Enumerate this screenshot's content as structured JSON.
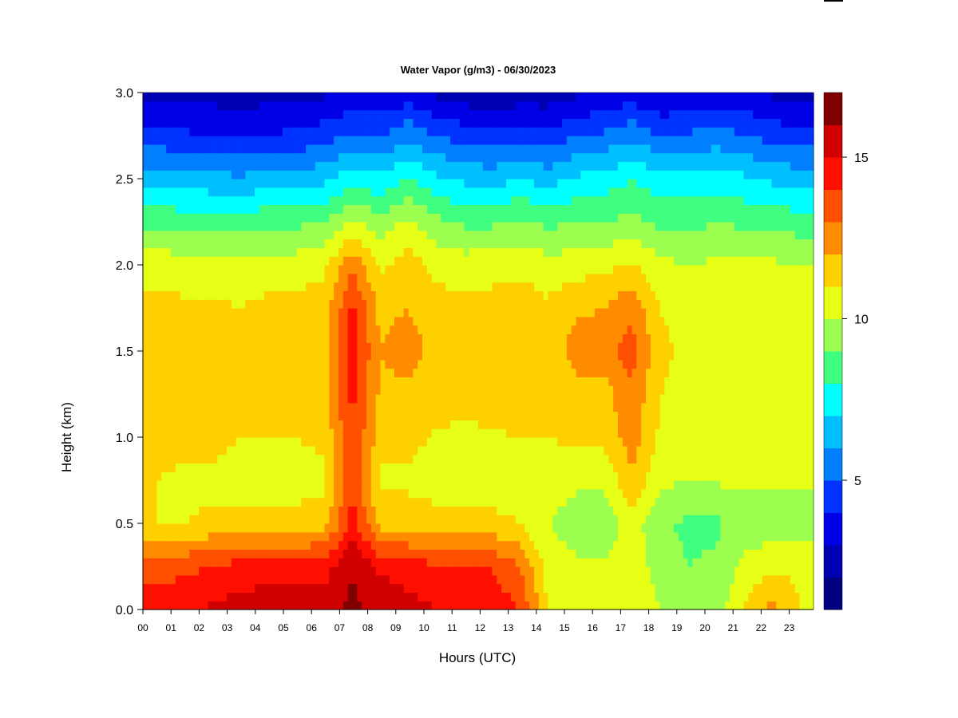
{
  "chart_data": {
    "type": "heatmap",
    "title": "Water Vapor (g/m3) - 06/30/2023",
    "xlabel": "Hours (UTC)",
    "ylabel": "Height (km)",
    "xlim": [
      0,
      24
    ],
    "ylim": [
      0.0,
      3.0
    ],
    "x_ticks": [
      "00",
      "01",
      "02",
      "03",
      "04",
      "05",
      "06",
      "07",
      "08",
      "09",
      "10",
      "11",
      "12",
      "13",
      "14",
      "15",
      "16",
      "17",
      "18",
      "19",
      "20",
      "21",
      "22",
      "23"
    ],
    "y_ticks": [
      "0.0",
      "0.5",
      "1.0",
      "1.5",
      "2.0",
      "2.5",
      "3.0"
    ],
    "colorbar": {
      "range": [
        1,
        17
      ],
      "ticks": [
        "5",
        "10",
        "15"
      ],
      "tick_values": [
        5,
        10,
        15
      ],
      "colors": [
        "#000080",
        "#0000b3",
        "#0000e6",
        "#0033ff",
        "#0080ff",
        "#00bfff",
        "#00ffff",
        "#40ff80",
        "#9cff50",
        "#e6ff14",
        "#ffd000",
        "#ff8c00",
        "#ff4f00",
        "#ff0f00",
        "#d00000",
        "#800000"
      ]
    },
    "hours": [
      0,
      1,
      2,
      3,
      4,
      5,
      6,
      7,
      8,
      9,
      10,
      11,
      12,
      13,
      14,
      15,
      16,
      17,
      18,
      19,
      20,
      21,
      22,
      23
    ],
    "heights_km": [
      0.0,
      0.25,
      0.5,
      0.75,
      1.0,
      1.25,
      1.5,
      1.75,
      2.0,
      2.25,
      2.5,
      2.75,
      3.0
    ],
    "values": [
      [
        14.5,
        14.8,
        15.2,
        15.4,
        15.5,
        15.6,
        15.6,
        16.2,
        15.8,
        15.4,
        15.0,
        14.8,
        14.6,
        14.0,
        11.0,
        10.5,
        10.5,
        11.0,
        10.0,
        9.0,
        9.5,
        11.0,
        12.5,
        11.0
      ],
      [
        13.5,
        13.8,
        14.0,
        14.5,
        14.6,
        14.6,
        14.6,
        16.0,
        14.8,
        14.5,
        14.2,
        14.2,
        14.0,
        13.0,
        10.5,
        10.2,
        10.2,
        10.5,
        9.6,
        9.0,
        9.2,
        10.2,
        10.8,
        10.8
      ],
      [
        11.0,
        11.0,
        11.2,
        11.3,
        11.3,
        11.3,
        11.5,
        14.5,
        11.6,
        11.5,
        11.4,
        11.4,
        11.3,
        11.0,
        10.0,
        9.5,
        9.3,
        10.5,
        9.2,
        8.8,
        8.8,
        9.5,
        9.3,
        9.5
      ],
      [
        11.0,
        10.8,
        10.8,
        10.6,
        10.6,
        10.6,
        10.8,
        14.0,
        10.8,
        10.8,
        10.5,
        10.4,
        10.4,
        10.5,
        10.5,
        10.2,
        10.2,
        11.8,
        10.2,
        10.0,
        10.1,
        10.2,
        10.2,
        10.1
      ],
      [
        11.5,
        11.2,
        11.3,
        11.0,
        11.0,
        11.0,
        11.2,
        14.0,
        11.4,
        11.3,
        10.9,
        10.8,
        10.9,
        11.0,
        11.0,
        11.2,
        11.3,
        12.5,
        10.8,
        10.5,
        10.7,
        10.6,
        10.6,
        10.5
      ],
      [
        11.8,
        11.6,
        11.6,
        11.5,
        11.4,
        11.4,
        11.6,
        14.3,
        11.8,
        11.7,
        11.4,
        11.3,
        11.4,
        11.5,
        11.3,
        11.5,
        11.6,
        12.8,
        11.0,
        10.8,
        11.0,
        10.9,
        10.9,
        10.8
      ],
      [
        11.5,
        11.4,
        11.4,
        11.2,
        11.4,
        11.4,
        11.6,
        14.5,
        12.0,
        12.5,
        11.6,
        11.4,
        11.6,
        11.7,
        11.4,
        12.5,
        12.6,
        13.5,
        11.2,
        10.8,
        11.0,
        11.0,
        10.9,
        10.8
      ],
      [
        11.3,
        11.2,
        11.2,
        11.0,
        11.3,
        11.3,
        11.5,
        14.2,
        11.7,
        12.0,
        11.4,
        11.2,
        11.4,
        11.5,
        11.2,
        11.8,
        12.0,
        12.8,
        11.0,
        10.6,
        10.8,
        10.8,
        10.7,
        10.5
      ],
      [
        10.6,
        10.5,
        10.4,
        10.3,
        10.5,
        10.5,
        10.8,
        12.8,
        10.8,
        11.5,
        10.7,
        10.5,
        10.6,
        10.8,
        10.4,
        10.6,
        10.7,
        11.2,
        10.3,
        10.0,
        10.2,
        10.2,
        10.2,
        10.0
      ],
      [
        8.8,
        8.6,
        8.6,
        8.5,
        8.8,
        8.8,
        9.0,
        10.2,
        9.4,
        10.2,
        9.3,
        8.8,
        8.8,
        9.2,
        8.8,
        8.9,
        9.0,
        9.3,
        8.8,
        8.6,
        9.0,
        8.8,
        8.7,
        8.5
      ],
      [
        6.6,
        6.4,
        6.3,
        6.2,
        6.4,
        6.4,
        6.8,
        7.6,
        7.2,
        8.0,
        7.2,
        6.8,
        6.6,
        7.0,
        6.6,
        7.2,
        7.4,
        8.0,
        7.3,
        7.4,
        7.5,
        7.2,
        6.8,
        6.6
      ],
      [
        4.4,
        4.2,
        4.0,
        3.9,
        4.1,
        4.2,
        4.6,
        5.2,
        5.0,
        5.8,
        5.0,
        4.6,
        4.3,
        4.6,
        4.3,
        5.0,
        5.2,
        5.8,
        5.0,
        5.2,
        5.4,
        5.1,
        4.6,
        4.4
      ],
      [
        2.4,
        2.6,
        2.6,
        2.5,
        2.6,
        2.6,
        2.8,
        3.2,
        3.0,
        3.4,
        2.8,
        2.4,
        2.1,
        2.4,
        2.4,
        2.8,
        3.0,
        3.4,
        2.9,
        3.0,
        3.4,
        3.2,
        2.8,
        2.6
      ]
    ]
  }
}
